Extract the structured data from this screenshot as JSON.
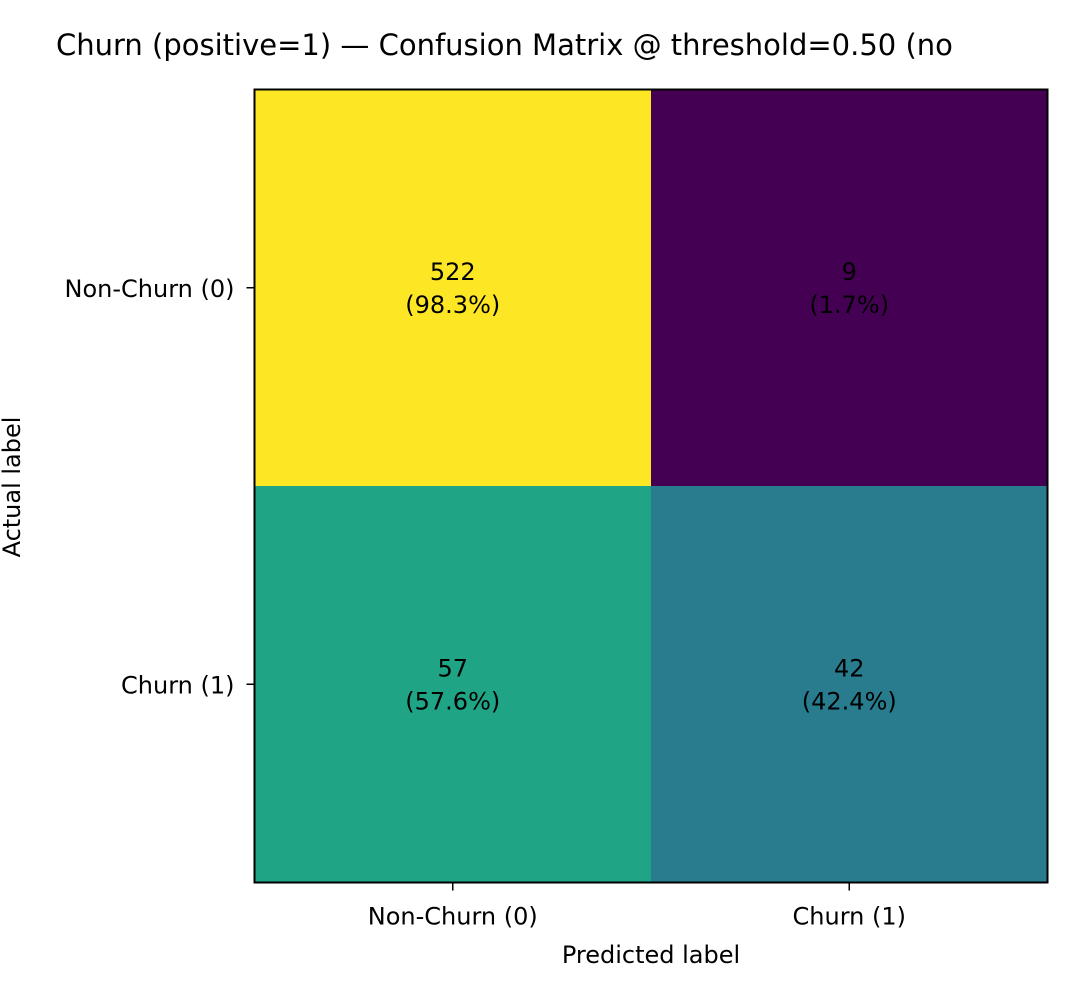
{
  "chart_data": {
    "type": "heatmap",
    "title": "Churn (positive=1) — Confusion Matrix @ threshold=0.50 (no",
    "xlabel": "Predicted label",
    "ylabel": "Actual label",
    "x_categories": [
      "Non-Churn (0)",
      "Churn (1)"
    ],
    "y_categories": [
      "Non-Churn (0)",
      "Churn (1)"
    ],
    "counts": [
      [
        522,
        9
      ],
      [
        57,
        42
      ]
    ],
    "percent_labels": [
      [
        "(98.3%)",
        "(1.7%)"
      ],
      [
        "(57.6%)",
        "(42.4%)"
      ]
    ],
    "row_normalized": [
      [
        0.983,
        0.017
      ],
      [
        0.576,
        0.424
      ]
    ],
    "colormap": "viridis",
    "color_range": [
      0,
      1
    ],
    "grid": false,
    "colors": {
      "cell_00": "#fde725",
      "cell_01": "#440154",
      "cell_10": "#20a486",
      "cell_11": "#287c8e"
    }
  }
}
